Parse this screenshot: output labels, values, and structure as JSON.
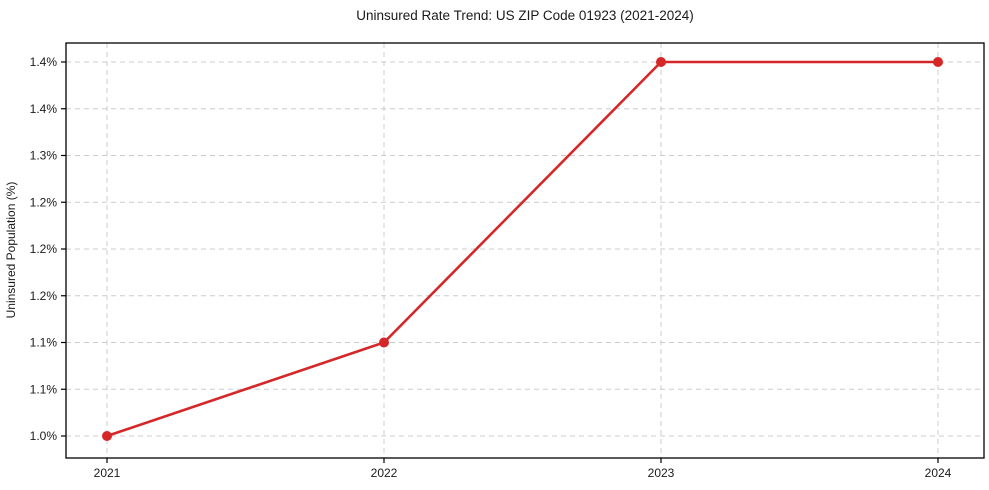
{
  "chart": {
    "title": "Uninsured Rate Trend: US ZIP Code 01923 (2021-2024)",
    "ylabel": "Uninsured Population (%)"
  },
  "chart_data": {
    "type": "line",
    "title": "Uninsured Rate Trend: US ZIP Code 01923 (2021-2024)",
    "xlabel": "",
    "ylabel": "Uninsured Population (%)",
    "x": [
      2021,
      2022,
      2023,
      2024
    ],
    "xtick_labels": [
      "2021",
      "2022",
      "2023",
      "2024"
    ],
    "series": [
      {
        "name": "Uninsured Rate",
        "values": [
          1.0,
          1.1,
          1.4,
          1.4
        ]
      }
    ],
    "ylim": [
      1.0,
      1.4
    ],
    "ytick_values": [
      1.0,
      1.05,
      1.1,
      1.15,
      1.2,
      1.25,
      1.3,
      1.35,
      1.4
    ],
    "ytick_labels": [
      "1.0%",
      "1.1%",
      "1.1%",
      "1.2%",
      "1.2%",
      "1.2%",
      "1.3%",
      "1.4%",
      "1.4%"
    ],
    "grid": true,
    "legend": "none",
    "colors": {
      "line": "#d62728",
      "marker": "#d62728",
      "grid": "#cccccc",
      "spine": "#000000",
      "text": "#1a1a1a",
      "background": "#ffffff"
    }
  }
}
